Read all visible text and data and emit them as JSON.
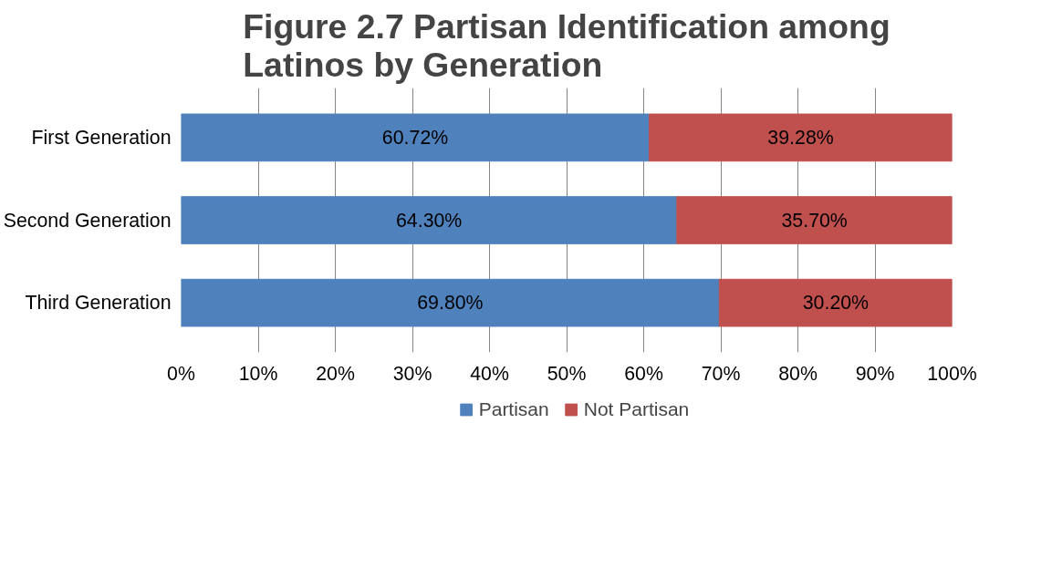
{
  "chart_data": {
    "type": "bar",
    "orientation": "horizontal",
    "stacked": true,
    "title": "Figure 2.7 Partisan Identification among Latinos by Generation",
    "categories": [
      "First Generation",
      "Second Generation",
      "Third Generation"
    ],
    "series": [
      {
        "name": "Partisan",
        "color": "#4f81bd",
        "values": [
          60.72,
          64.3,
          69.8
        ],
        "value_labels": [
          "60.72%",
          "64.30%",
          "69.80%"
        ]
      },
      {
        "name": "Not Partisan",
        "color": "#c0504d",
        "values": [
          39.28,
          35.7,
          30.2
        ],
        "value_labels": [
          "39.28%",
          "35.70%",
          "30.20%"
        ]
      }
    ],
    "xlim": [
      0,
      100
    ],
    "xticks": [
      {
        "value": 0,
        "label": "0%"
      },
      {
        "value": 10,
        "label": "10%"
      },
      {
        "value": 20,
        "label": "20%"
      },
      {
        "value": 30,
        "label": "30%"
      },
      {
        "value": 40,
        "label": "40%"
      },
      {
        "value": 50,
        "label": "50%"
      },
      {
        "value": 60,
        "label": "60%"
      },
      {
        "value": 70,
        "label": "70%"
      },
      {
        "value": 80,
        "label": "80%"
      },
      {
        "value": 90,
        "label": "90%"
      },
      {
        "value": 100,
        "label": "100%"
      }
    ],
    "grid": "x",
    "legend": "bottom"
  }
}
